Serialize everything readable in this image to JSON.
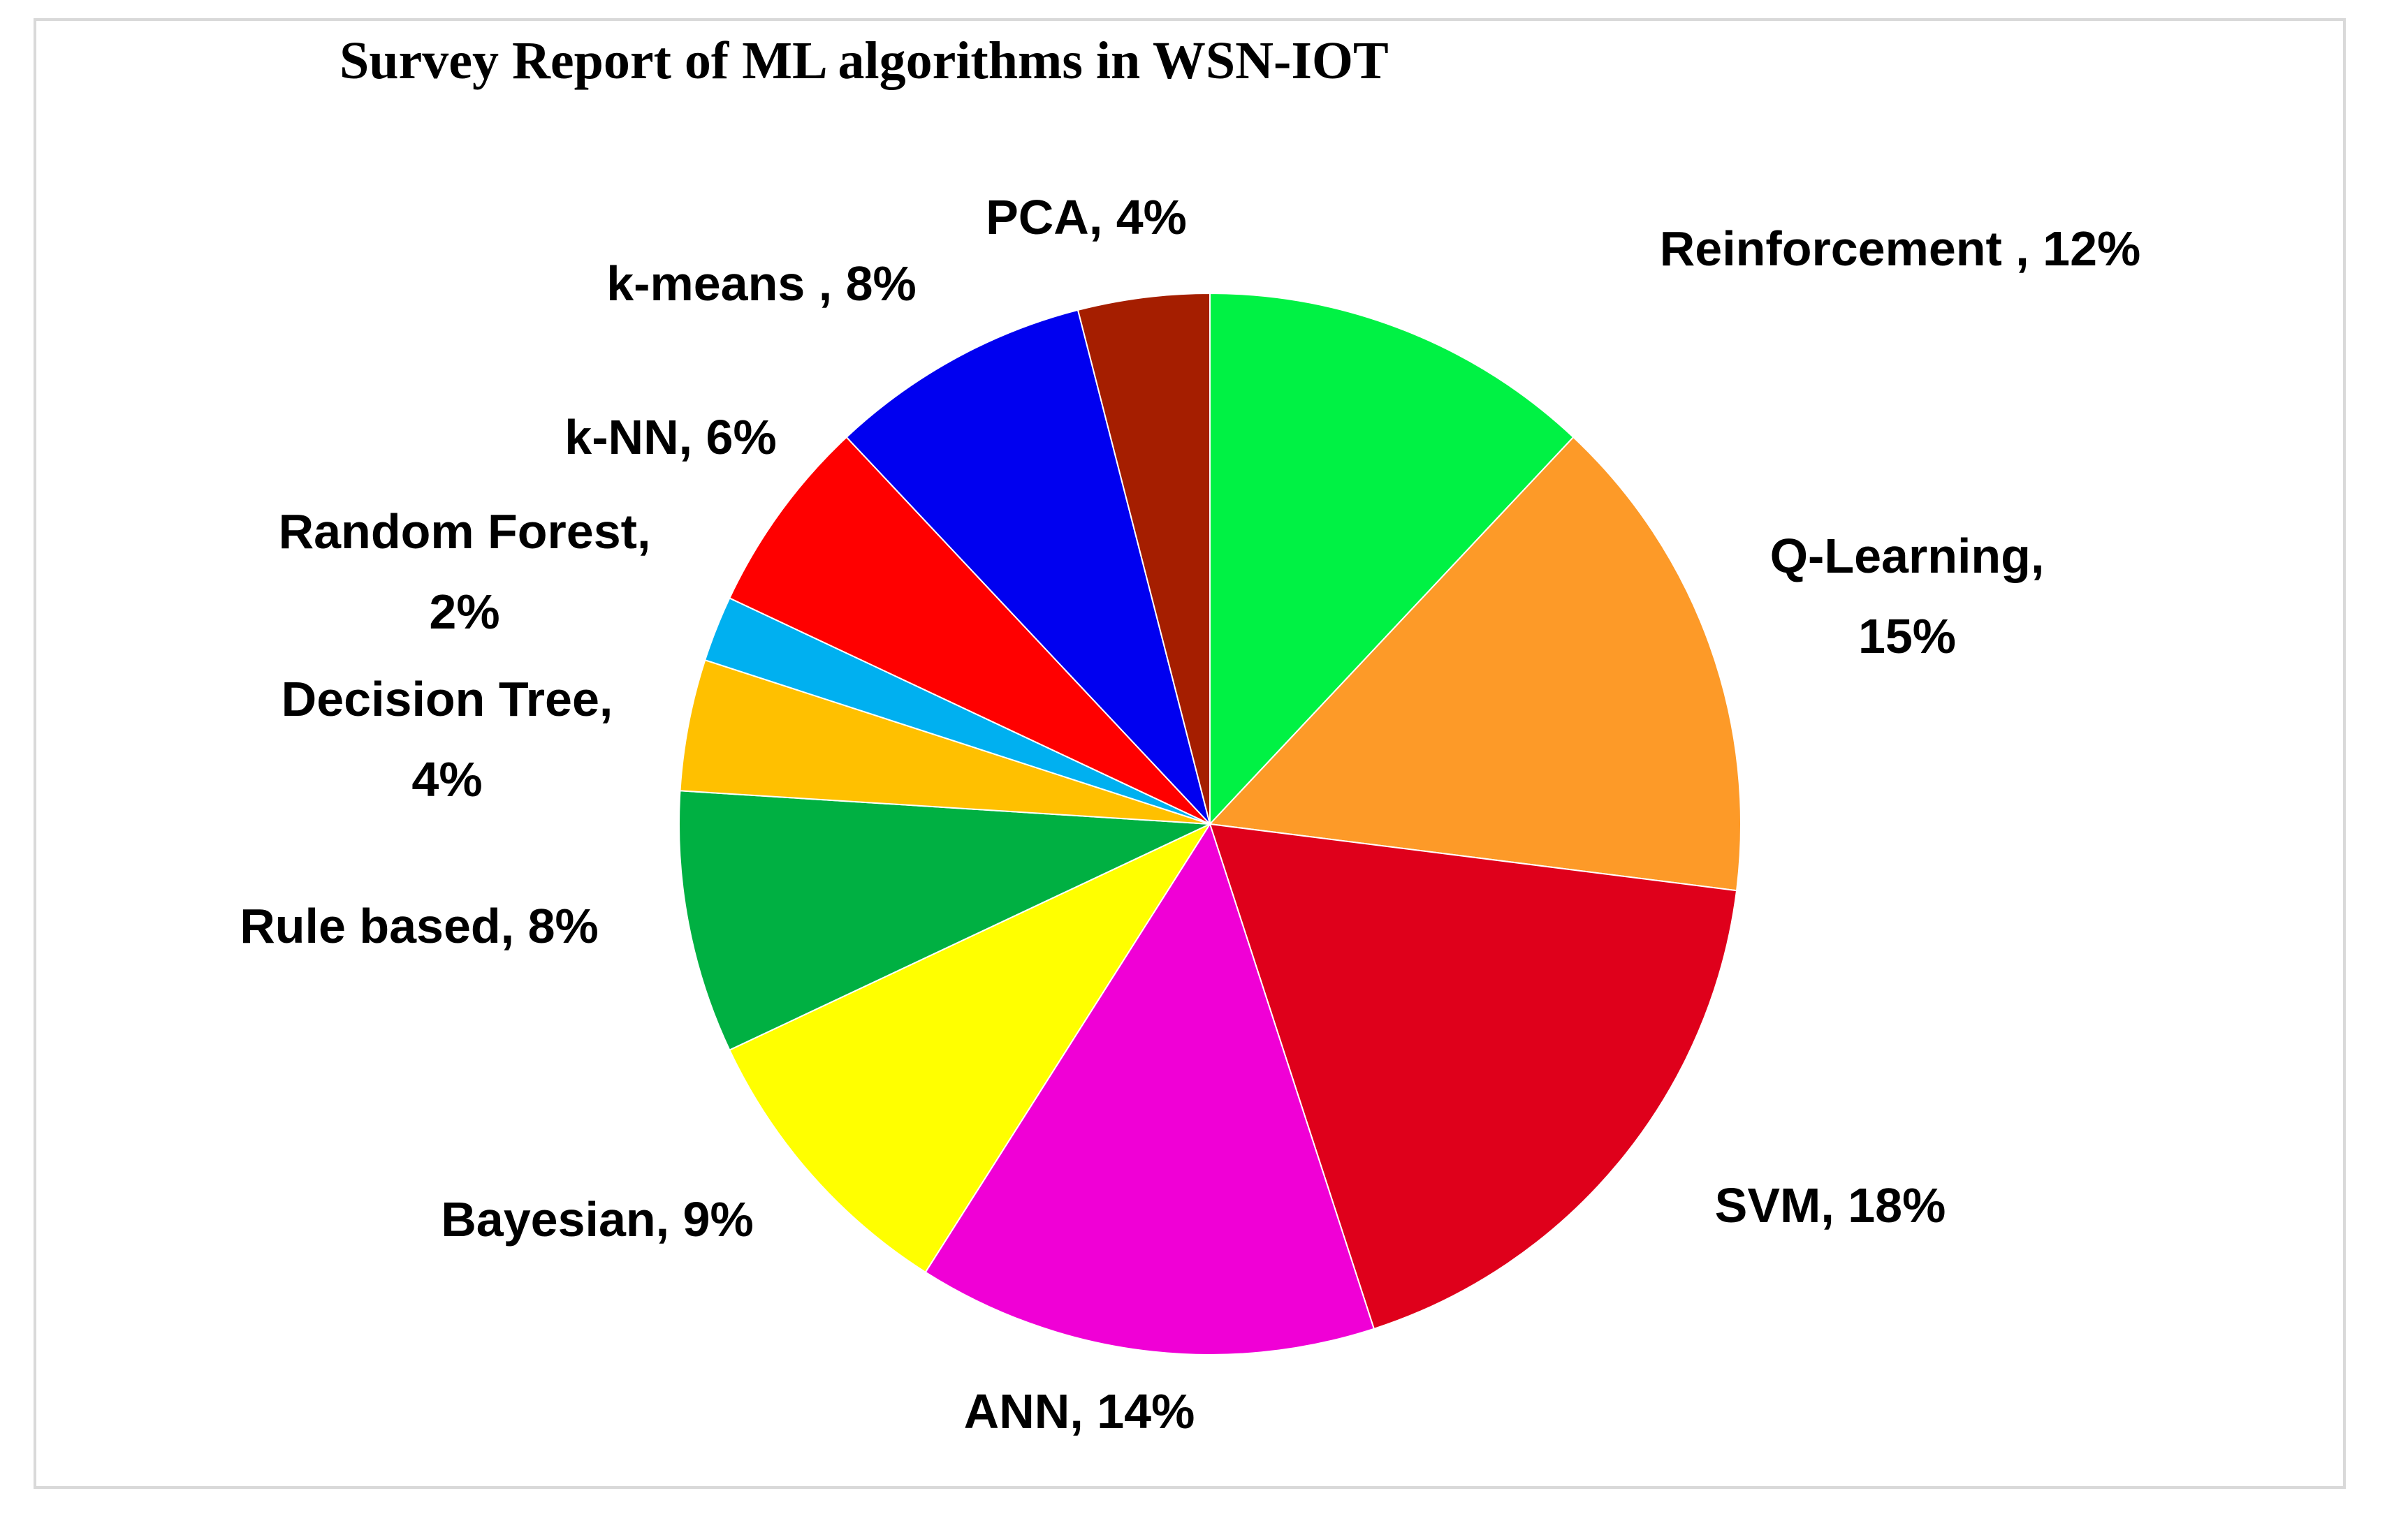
{
  "chart_data": {
    "type": "pie",
    "title": "Survey Report of ML algorithms in WSN-IOT",
    "slices": [
      {
        "label": "Reinforcement",
        "value": 12,
        "label_text": "Reinforcement , 12%",
        "color": "#00f244"
      },
      {
        "label": "Q-Learning",
        "value": 15,
        "label_text": "Q-Learning, 15%",
        "color": "#fd9a28"
      },
      {
        "label": "SVM",
        "value": 18,
        "label_text": "SVM, 18%",
        "color": "#df001b"
      },
      {
        "label": "ANN",
        "value": 14,
        "label_text": "ANN, 14%",
        "color": "#f000d6"
      },
      {
        "label": "Bayesian",
        "value": 9,
        "label_text": "Bayesian, 9%",
        "color": "#ffff00"
      },
      {
        "label": "Rule based",
        "value": 8,
        "label_text": "Rule based, 8%",
        "color": "#00b042"
      },
      {
        "label": "Decision Tree",
        "value": 4,
        "label_text": "Decision Tree, 4%",
        "color": "#ffc000"
      },
      {
        "label": "Random Forest",
        "value": 2,
        "label_text": "Random Forest, 2%",
        "color": "#00b0f0"
      },
      {
        "label": "k-NN",
        "value": 6,
        "label_text": "k-NN, 6%",
        "color": "#ff0000"
      },
      {
        "label": "k-means",
        "value": 8,
        "label_text": "k-means , 8%",
        "color": "#0000f0"
      },
      {
        "label": "PCA",
        "value": 4,
        "label_text": "PCA, 4%",
        "color": "#a51e00"
      }
    ],
    "start_angle_deg": 0,
    "direction": "clockwise",
    "data_labels": "outside-end"
  }
}
